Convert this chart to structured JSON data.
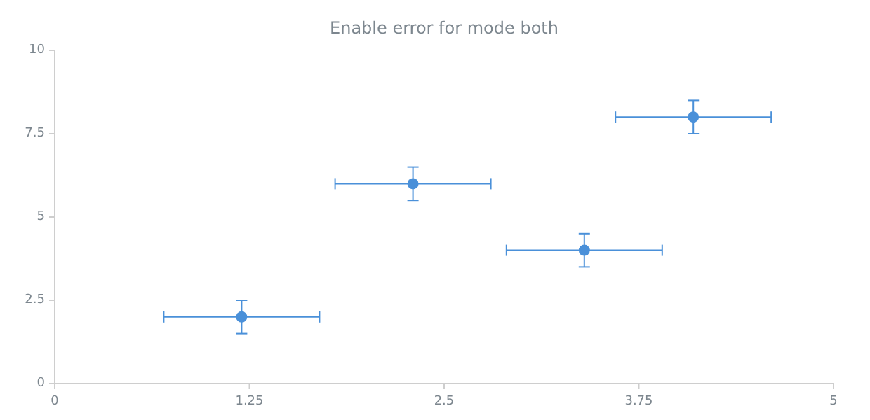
{
  "chart_data": {
    "type": "scatter",
    "title": "Enable error for mode both",
    "x": [
      1.2,
      2.3,
      3.4,
      4.1
    ],
    "series": [
      {
        "color": "#4a90d9",
        "values": [
          2,
          6,
          4,
          8
        ],
        "errors": [
          0.5,
          0.5,
          0.5,
          0.5
        ],
        "xerrors": [
          0.5,
          0.5,
          0.5,
          0.5
        ]
      }
    ],
    "xlim": [
      0,
      5
    ],
    "xticks": [
      0,
      1.25,
      2.5,
      3.75,
      5
    ],
    "ylim": [
      0,
      10
    ],
    "yticks": [
      0,
      2.5,
      5,
      7.5,
      10
    ],
    "grid": false,
    "marker": "circle"
  }
}
